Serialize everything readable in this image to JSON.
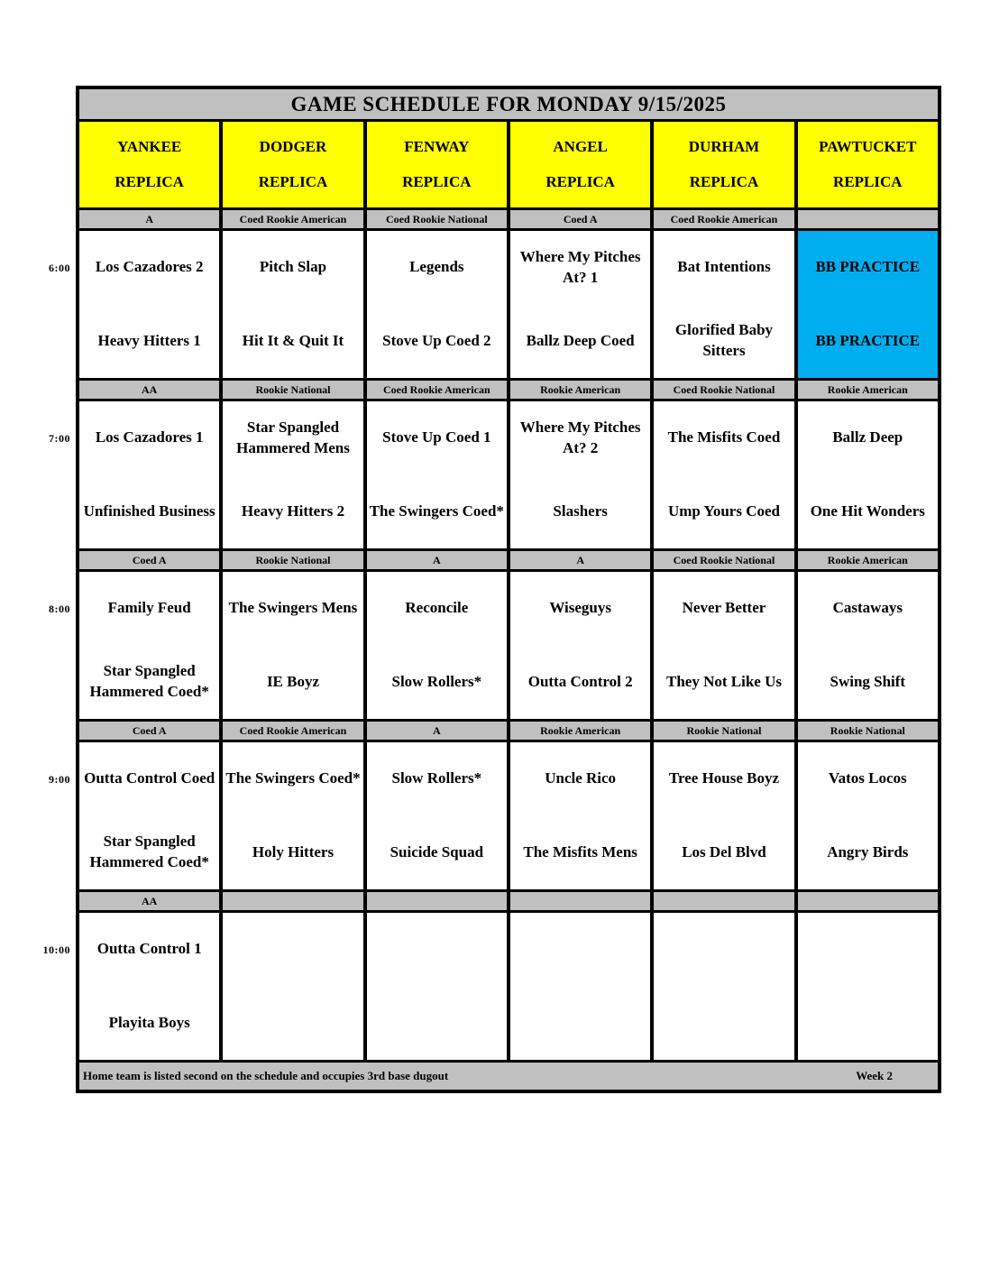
{
  "title": "GAME SCHEDULE FOR MONDAY 9/15/2025",
  "fields": [
    {
      "name": "YANKEE",
      "sub": "REPLICA"
    },
    {
      "name": "DODGER",
      "sub": "REPLICA"
    },
    {
      "name": "FENWAY",
      "sub": "REPLICA"
    },
    {
      "name": "ANGEL",
      "sub": "REPLICA"
    },
    {
      "name": "DURHAM",
      "sub": "REPLICA"
    },
    {
      "name": "PAWTUCKET",
      "sub": "REPLICA"
    }
  ],
  "blocks": [
    {
      "time": "6:00",
      "cells": [
        {
          "division": "A",
          "away": "Los Cazadores 2",
          "home": "Heavy Hitters 1"
        },
        {
          "division": "Coed Rookie American",
          "away": "Pitch Slap",
          "home": "Hit It & Quit It"
        },
        {
          "division": "Coed Rookie National",
          "away": "Legends",
          "home": "Stove Up Coed 2"
        },
        {
          "division": "Coed A",
          "away": "Where My Pitches At? 1",
          "home": "Ballz Deep Coed"
        },
        {
          "division": "Coed Rookie American",
          "away": "Bat Intentions",
          "home": "Glorified Baby Sitters"
        },
        {
          "division": "",
          "away": "BB PRACTICE",
          "home": "BB PRACTICE"
        }
      ]
    },
    {
      "time": "7:00",
      "cells": [
        {
          "division": "AA",
          "away": "Los Cazadores 1",
          "home": "Unfinished Business"
        },
        {
          "division": "Rookie National",
          "away": "Star Spangled Hammered Mens",
          "home": "Heavy Hitters 2"
        },
        {
          "division": "Coed Rookie American",
          "away": "Stove Up Coed 1",
          "home": "The Swingers Coed*"
        },
        {
          "division": "Rookie American",
          "away": "Where My Pitches At? 2",
          "home": "Slashers"
        },
        {
          "division": "Coed Rookie National",
          "away": "The Misfits Coed",
          "home": "Ump Yours Coed"
        },
        {
          "division": "Rookie American",
          "away": "Ballz Deep",
          "home": "One Hit Wonders"
        }
      ]
    },
    {
      "time": "8:00",
      "cells": [
        {
          "division": "Coed A",
          "away": "Family Feud",
          "home": "Star Spangled Hammered Coed*"
        },
        {
          "division": "Rookie National",
          "away": "The Swingers Mens",
          "home": "IE Boyz"
        },
        {
          "division": "A",
          "away": "Reconcile",
          "home": "Slow Rollers*"
        },
        {
          "division": "A",
          "away": "Wiseguys",
          "home": "Outta Control 2"
        },
        {
          "division": "Coed Rookie National",
          "away": "Never Better",
          "home": "They Not Like Us"
        },
        {
          "division": "Rookie American",
          "away": "Castaways",
          "home": "Swing Shift"
        }
      ]
    },
    {
      "time": "9:00",
      "cells": [
        {
          "division": "Coed A",
          "away": "Outta Control Coed",
          "home": "Star Spangled Hammered Coed*"
        },
        {
          "division": "Coed Rookie American",
          "away": "The Swingers Coed*",
          "home": "Holy Hitters"
        },
        {
          "division": "A",
          "away": "Slow Rollers*",
          "home": "Suicide Squad"
        },
        {
          "division": "Rookie American",
          "away": "Uncle Rico",
          "home": "The Misfits Mens"
        },
        {
          "division": "Rookie National",
          "away": "Tree House Boyz",
          "home": "Los Del Blvd"
        },
        {
          "division": "Rookie National",
          "away": "Vatos Locos",
          "home": "Angry Birds"
        }
      ]
    },
    {
      "time": "10:00",
      "cells": [
        {
          "division": "AA",
          "away": "Outta Control 1",
          "home": "Playita Boys"
        },
        {
          "division": "",
          "away": "",
          "home": ""
        },
        {
          "division": "",
          "away": "",
          "home": ""
        },
        {
          "division": "",
          "away": "",
          "home": ""
        },
        {
          "division": "",
          "away": "",
          "home": ""
        },
        {
          "division": "",
          "away": "",
          "home": ""
        }
      ]
    }
  ],
  "footer": {
    "note": "Home team is listed second on the schedule and occupies 3rd base dugout",
    "week": "Week 2"
  },
  "colors": {
    "header_yellow": "#FFFF00",
    "band_gray": "#C0C0C0",
    "practice_blue": "#00AEEF",
    "border_black": "#000000"
  }
}
